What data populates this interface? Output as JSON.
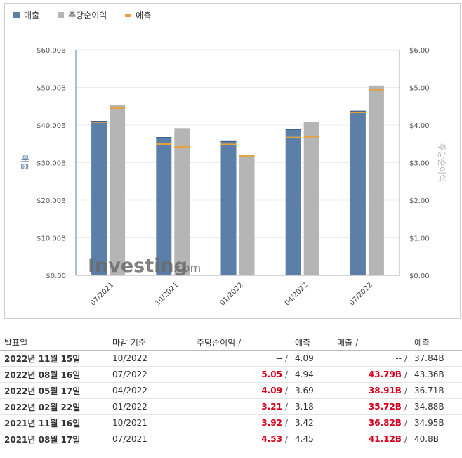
{
  "legend": [
    {
      "label": "매출",
      "color": "#5b7fa8"
    },
    {
      "label": "주당순이익",
      "color": "#b5b5b5"
    },
    {
      "label": "예측",
      "color": "#e6a23c"
    }
  ],
  "watermark": {
    "brand": "Investing",
    "domain": ".com"
  },
  "chart_data": {
    "type": "bar",
    "categories": [
      "07/2021",
      "10/2021",
      "01/2022",
      "04/2022",
      "07/2022"
    ],
    "ylabel": "매출",
    "y2label": "주당순이익",
    "ylim": [
      0,
      60
    ],
    "y2lim": [
      0,
      6
    ],
    "yticks": [
      "$0.00",
      "$10.00B",
      "$20.00B",
      "$30.00B",
      "$40.00B",
      "$50.00B",
      "$60.00B"
    ],
    "y2ticks": [
      "$0.00",
      "$1.00",
      "$2.00",
      "$3.00",
      "$4.00",
      "$5.00",
      "$6.00"
    ],
    "series": [
      {
        "name": "매출",
        "axis": "left",
        "color": "#5b7fa8",
        "values": [
          41.12,
          36.82,
          35.72,
          38.91,
          43.79
        ],
        "forecast": [
          40.8,
          34.95,
          34.88,
          36.71,
          43.36
        ]
      },
      {
        "name": "주당순이익",
        "axis": "right",
        "color": "#b5b5b5",
        "values": [
          4.53,
          3.92,
          3.21,
          4.09,
          5.05
        ],
        "forecast": [
          4.45,
          3.42,
          3.18,
          3.69,
          4.94
        ]
      }
    ]
  },
  "table": {
    "headers": {
      "date": "발표일",
      "period": "마감 기준",
      "eps": "주당순이익",
      "slash": "/",
      "eps_fc": "예측",
      "rev": "매출",
      "rev_fc": "예측"
    },
    "rows": [
      {
        "date": "2022년 11월 15일",
        "period": "10/2022",
        "eps": "--",
        "eps_fc": "4.09",
        "rev": "--",
        "rev_fc": "37.84B",
        "hl": false
      },
      {
        "date": "2022년 08월 16일",
        "period": "07/2022",
        "eps": "5.05",
        "eps_fc": "4.94",
        "rev": "43.79B",
        "rev_fc": "43.36B",
        "hl": true
      },
      {
        "date": "2022년 05월 17일",
        "period": "04/2022",
        "eps": "4.09",
        "eps_fc": "3.69",
        "rev": "38.91B",
        "rev_fc": "36.71B",
        "hl": true
      },
      {
        "date": "2022년 02월 22일",
        "period": "01/2022",
        "eps": "3.21",
        "eps_fc": "3.18",
        "rev": "35.72B",
        "rev_fc": "34.88B",
        "hl": true
      },
      {
        "date": "2021년 11월 16일",
        "period": "10/2021",
        "eps": "3.92",
        "eps_fc": "3.42",
        "rev": "36.82B",
        "rev_fc": "34.95B",
        "hl": true
      },
      {
        "date": "2021년 08월 17일",
        "period": "07/2021",
        "eps": "4.53",
        "eps_fc": "4.45",
        "rev": "41.12B",
        "rev_fc": "40.8B",
        "hl": true
      }
    ]
  }
}
